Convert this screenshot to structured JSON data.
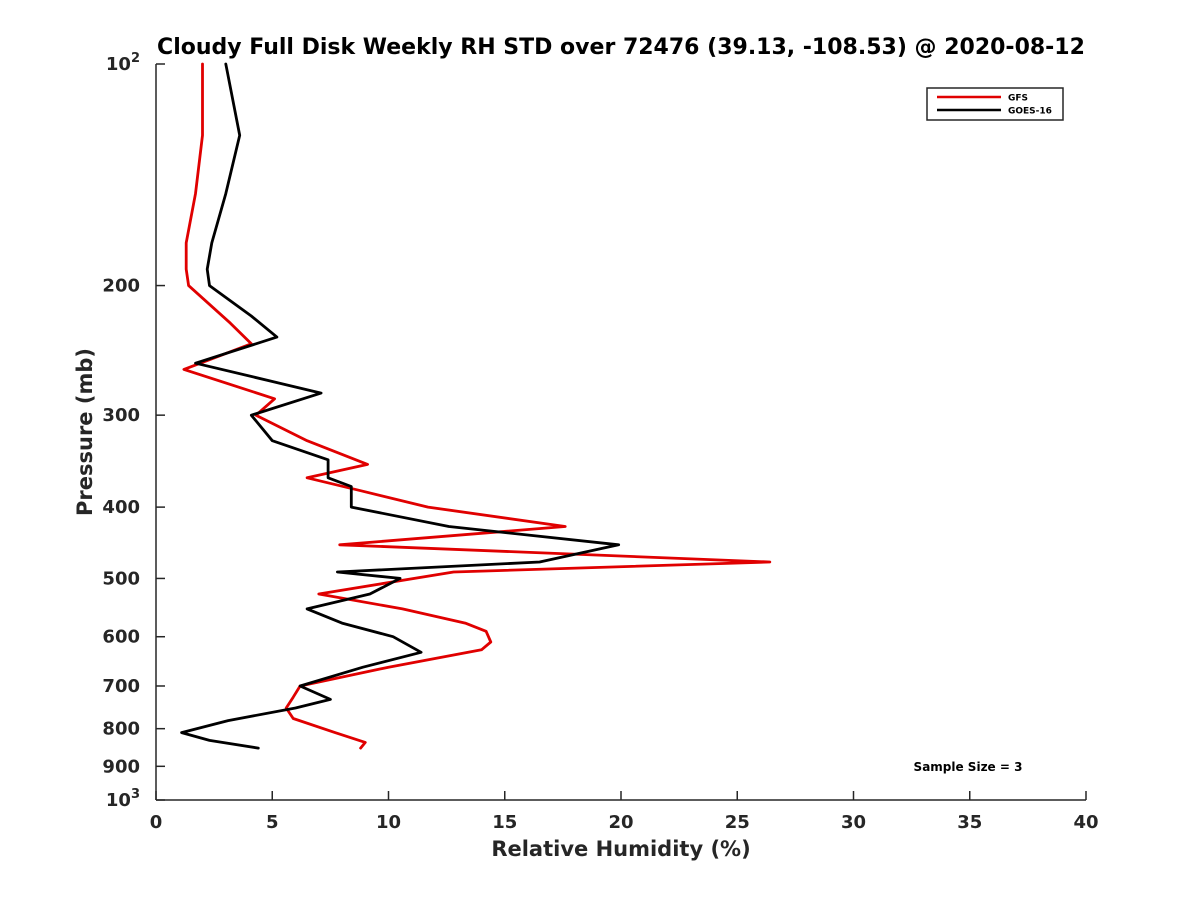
{
  "chart_data": {
    "type": "line",
    "title": "Cloudy Full Disk Weekly RH STD over 72476 (39.13, -108.53) @ 2020-08-12",
    "xlabel": "Relative Humidity (%)",
    "ylabel": "Pressure (mb)",
    "xlim": [
      0,
      40
    ],
    "ylim": [
      100,
      1000
    ],
    "yscale": "log",
    "y_reversed": true,
    "grid": false,
    "legend_position": "top-right",
    "x_ticks": [
      "0",
      "5",
      "10",
      "15",
      "20",
      "25",
      "30",
      "35",
      "40"
    ],
    "y_ticks": [
      {
        "value": 100,
        "base": "10",
        "exp": "2"
      },
      {
        "value": 200,
        "label": "200"
      },
      {
        "value": 300,
        "label": "300"
      },
      {
        "value": 400,
        "label": "400"
      },
      {
        "value": 500,
        "label": "500"
      },
      {
        "value": 600,
        "label": "600"
      },
      {
        "value": 700,
        "label": "700"
      },
      {
        "value": 800,
        "label": "800"
      },
      {
        "value": 900,
        "label": "900"
      },
      {
        "value": 1000,
        "base": "10",
        "exp": "3"
      }
    ],
    "series": [
      {
        "name": "GFS",
        "color": "#e00000",
        "points": [
          [
            2.0,
            100
          ],
          [
            2.0,
            125
          ],
          [
            1.7,
            150
          ],
          [
            1.3,
            175
          ],
          [
            1.3,
            190
          ],
          [
            1.4,
            200
          ],
          [
            3.2,
            225
          ],
          [
            4.1,
            240
          ],
          [
            1.2,
            260
          ],
          [
            5.1,
            285
          ],
          [
            4.3,
            300
          ],
          [
            6.5,
            325
          ],
          [
            9.1,
            350
          ],
          [
            6.5,
            365
          ],
          [
            8.8,
            380
          ],
          [
            11.7,
            400
          ],
          [
            17.6,
            425
          ],
          [
            7.9,
            450
          ],
          [
            26.4,
            475
          ],
          [
            12.8,
            490
          ],
          [
            7.0,
            525
          ],
          [
            10.6,
            550
          ],
          [
            13.3,
            575
          ],
          [
            14.2,
            590
          ],
          [
            14.4,
            610
          ],
          [
            14.0,
            625
          ],
          [
            10.0,
            660
          ],
          [
            6.2,
            700
          ],
          [
            5.9,
            725
          ],
          [
            5.6,
            750
          ],
          [
            5.9,
            775
          ],
          [
            7.7,
            810
          ],
          [
            9.0,
            835
          ],
          [
            8.8,
            850
          ]
        ]
      },
      {
        "name": "GOES-16",
        "color": "#000000",
        "points": [
          [
            3.0,
            100
          ],
          [
            3.6,
            125
          ],
          [
            3.0,
            150
          ],
          [
            2.4,
            175
          ],
          [
            2.2,
            190
          ],
          [
            2.3,
            200
          ],
          [
            4.1,
            220
          ],
          [
            5.2,
            235
          ],
          [
            1.7,
            255
          ],
          [
            7.1,
            280
          ],
          [
            4.1,
            300
          ],
          [
            5.0,
            325
          ],
          [
            7.4,
            345
          ],
          [
            7.4,
            365
          ],
          [
            8.4,
            375
          ],
          [
            8.4,
            400
          ],
          [
            12.6,
            425
          ],
          [
            19.9,
            450
          ],
          [
            16.5,
            475
          ],
          [
            7.8,
            490
          ],
          [
            10.5,
            500
          ],
          [
            9.2,
            525
          ],
          [
            6.5,
            550
          ],
          [
            8.0,
            575
          ],
          [
            10.2,
            600
          ],
          [
            11.4,
            630
          ],
          [
            8.9,
            660
          ],
          [
            6.2,
            700
          ],
          [
            7.5,
            730
          ],
          [
            6.0,
            750
          ],
          [
            3.1,
            780
          ],
          [
            1.1,
            810
          ],
          [
            2.3,
            830
          ],
          [
            4.4,
            850
          ]
        ]
      }
    ],
    "annotation": "Sample Size = 3"
  }
}
